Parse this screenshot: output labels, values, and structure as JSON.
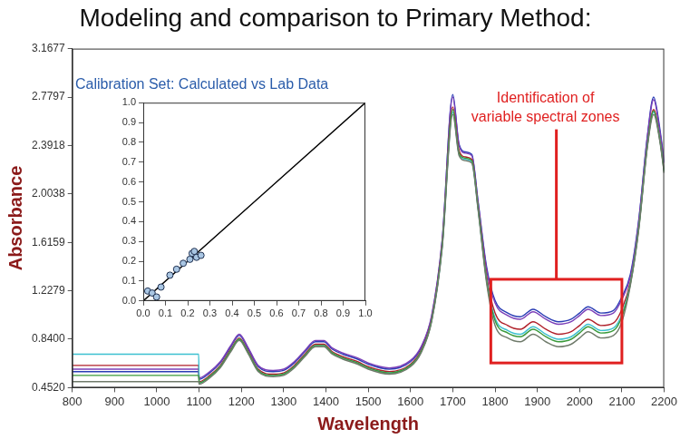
{
  "chart_data": [
    {
      "type": "line",
      "title": "Modeling and comparison to Primary Method:",
      "x_label": "Wavelength",
      "y_label": "Absorbance",
      "x": [
        800,
        900,
        1000,
        1099,
        1100,
        1125,
        1150,
        1175,
        1195,
        1215,
        1240,
        1275,
        1300,
        1325,
        1350,
        1375,
        1395,
        1415,
        1440,
        1475,
        1500,
        1550,
        1600,
        1625,
        1650,
        1675,
        1700,
        1715,
        1730,
        1745,
        1760,
        1780,
        1800,
        1830,
        1860,
        1890,
        1920,
        1950,
        1980,
        2000,
        2020,
        2050,
        2080,
        2100,
        2120,
        2140,
        2160,
        2175,
        2190,
        2200
      ],
      "series": [
        {
          "color": "#6f7a6a",
          "values": [
            0.5,
            0.5,
            0.5,
            0.5,
            0.48,
            0.53,
            0.61,
            0.74,
            0.83,
            0.73,
            0.58,
            0.54,
            0.55,
            0.61,
            0.7,
            0.78,
            0.78,
            0.72,
            0.68,
            0.64,
            0.6,
            0.56,
            0.62,
            0.73,
            0.98,
            1.57,
            2.64,
            2.31,
            2.27,
            2.25,
            1.87,
            1.29,
            0.95,
            0.85,
            0.82,
            0.88,
            0.82,
            0.78,
            0.8,
            0.85,
            0.9,
            0.85,
            0.87,
            0.98,
            1.27,
            1.72,
            2.37,
            2.64,
            2.42,
            2.17
          ]
        },
        {
          "color": "#3a9a3a",
          "values": [
            0.55,
            0.55,
            0.55,
            0.55,
            0.49,
            0.54,
            0.62,
            0.75,
            0.84,
            0.74,
            0.59,
            0.55,
            0.56,
            0.62,
            0.71,
            0.79,
            0.79,
            0.73,
            0.69,
            0.65,
            0.61,
            0.57,
            0.63,
            0.74,
            0.99,
            1.59,
            2.68,
            2.33,
            2.29,
            2.27,
            1.89,
            1.31,
            0.99,
            0.89,
            0.86,
            0.92,
            0.86,
            0.82,
            0.84,
            0.89,
            0.94,
            0.89,
            0.91,
            1.02,
            1.28,
            1.73,
            2.38,
            2.67,
            2.43,
            2.18
          ]
        },
        {
          "color": "#3cc0d0",
          "values": [
            0.72,
            0.72,
            0.72,
            0.72,
            0.49,
            0.54,
            0.62,
            0.75,
            0.84,
            0.74,
            0.59,
            0.55,
            0.56,
            0.62,
            0.71,
            0.79,
            0.79,
            0.73,
            0.69,
            0.65,
            0.61,
            0.57,
            0.63,
            0.74,
            0.99,
            1.58,
            2.66,
            2.32,
            2.28,
            2.26,
            1.88,
            1.32,
            1.01,
            0.91,
            0.88,
            0.94,
            0.88,
            0.84,
            0.86,
            0.91,
            0.96,
            0.91,
            0.93,
            1.04,
            1.29,
            1.74,
            2.39,
            2.66,
            2.44,
            2.19
          ]
        },
        {
          "color": "#b0202a",
          "values": [
            0.63,
            0.63,
            0.63,
            0.63,
            0.5,
            0.55,
            0.63,
            0.76,
            0.85,
            0.75,
            0.6,
            0.56,
            0.57,
            0.63,
            0.72,
            0.8,
            0.8,
            0.74,
            0.7,
            0.66,
            0.62,
            0.58,
            0.64,
            0.75,
            1.0,
            1.6,
            2.7,
            2.35,
            2.3,
            2.28,
            1.9,
            1.35,
            1.05,
            0.95,
            0.92,
            0.98,
            0.92,
            0.88,
            0.9,
            0.95,
            1.0,
            0.95,
            0.97,
            1.08,
            1.3,
            1.75,
            2.4,
            2.68,
            2.45,
            2.2
          ]
        },
        {
          "color": "#7b3fb8",
          "values": [
            0.6,
            0.6,
            0.6,
            0.6,
            0.53,
            0.58,
            0.66,
            0.79,
            0.88,
            0.78,
            0.63,
            0.59,
            0.6,
            0.66,
            0.75,
            0.83,
            0.83,
            0.77,
            0.73,
            0.69,
            0.65,
            0.61,
            0.67,
            0.78,
            1.03,
            1.64,
            2.78,
            2.39,
            2.33,
            2.31,
            1.93,
            1.4,
            1.13,
            1.03,
            1.0,
            1.06,
            1.0,
            0.96,
            0.98,
            1.03,
            1.08,
            1.03,
            1.05,
            1.16,
            1.34,
            1.79,
            2.45,
            2.76,
            2.5,
            2.25
          ]
        },
        {
          "color": "#2a3db5",
          "values": [
            0.58,
            0.58,
            0.58,
            0.58,
            0.52,
            0.57,
            0.65,
            0.78,
            0.87,
            0.77,
            0.62,
            0.58,
            0.59,
            0.65,
            0.74,
            0.82,
            0.82,
            0.76,
            0.72,
            0.68,
            0.64,
            0.6,
            0.66,
            0.77,
            1.02,
            1.63,
            2.8,
            2.4,
            2.34,
            2.32,
            1.94,
            1.42,
            1.15,
            1.05,
            1.02,
            1.08,
            1.02,
            0.98,
            1.0,
            1.05,
            1.1,
            1.05,
            1.07,
            1.18,
            1.36,
            1.8,
            2.46,
            2.78,
            2.52,
            2.26
          ]
        }
      ],
      "xlim": [
        800,
        2200
      ],
      "xticks": [
        800,
        900,
        1000,
        1100,
        1200,
        1300,
        1400,
        1500,
        1600,
        1700,
        1800,
        1900,
        2000,
        2100,
        2200
      ],
      "ylim": [
        0.452,
        3.1677
      ],
      "yticks": [
        {
          "value": 0.452,
          "label": "0.4520"
        },
        {
          "value": 0.84,
          "label": "0.8400"
        },
        1.2279,
        1.6159,
        2.0038,
        2.3918,
        2.7797,
        3.1677
      ],
      "grid": false,
      "annotations": [
        {
          "text": [
            "Identification of",
            "variable spectral zones"
          ],
          "x": [
            1790,
            2100
          ],
          "y": [
            0.65,
            1.32
          ],
          "color": "#e02020"
        }
      ]
    },
    {
      "type": "scatter",
      "title": "Calibration Set: Calculated vs Lab Data",
      "series": [
        {
          "type": "scatter",
          "color": "#a9c6e3",
          "marker": "circle",
          "x": [
            0.02,
            0.04,
            0.06,
            0.08,
            0.12,
            0.15,
            0.18,
            0.21,
            0.22,
            0.23,
            0.24,
            0.26
          ],
          "values": [
            0.05,
            0.04,
            0.02,
            0.07,
            0.13,
            0.16,
            0.19,
            0.21,
            0.24,
            0.25,
            0.22,
            0.23
          ]
        },
        {
          "type": "line",
          "color": "#000000",
          "x": [
            0,
            1
          ],
          "values": [
            0,
            1
          ]
        }
      ],
      "xlim": [
        0,
        1
      ],
      "xticks": [
        {
          "value": 0,
          "label": "0.0"
        },
        0.1,
        0.2,
        0.3,
        0.4,
        0.5,
        0.6,
        0.7,
        0.8,
        0.9,
        {
          "value": 1,
          "label": "1.0"
        }
      ],
      "ylim": [
        0,
        1
      ],
      "yticks": [
        {
          "value": 0,
          "label": "0.0"
        },
        0.1,
        0.2,
        0.3,
        0.4,
        0.5,
        0.6,
        0.7,
        0.8,
        0.9,
        {
          "value": 1,
          "label": "1.0"
        }
      ],
      "grid": false
    }
  ]
}
